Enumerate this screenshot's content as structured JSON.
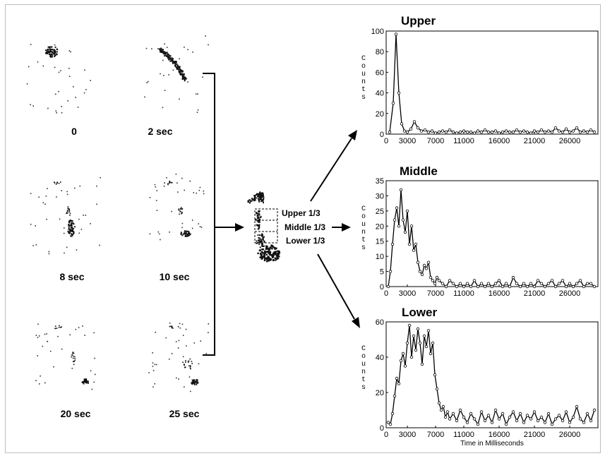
{
  "frames": [
    {
      "label": "0"
    },
    {
      "label": "2 sec"
    },
    {
      "label": "8 sec"
    },
    {
      "label": "10 sec"
    },
    {
      "label": "20 sec"
    },
    {
      "label": "25 sec"
    }
  ],
  "annotations": {
    "upper": "Upper 1/3",
    "middle": "Middle 1/3",
    "lower": "Lower 1/3"
  },
  "counts_label": "Counts",
  "chart_data": [
    {
      "type": "line",
      "title": "Upper",
      "ylabel": "Counts",
      "xlabel": "",
      "ylim": [
        0,
        100
      ],
      "xlim": [
        0,
        30000
      ],
      "xticks": [
        0,
        3000,
        7000,
        11000,
        16000,
        21000,
        26000
      ],
      "yticks": [
        0,
        20,
        40,
        60,
        80,
        100
      ],
      "x": [
        500,
        1000,
        1400,
        1800,
        2200,
        2600,
        3000,
        3500,
        4000,
        4500,
        5000,
        5500,
        6000,
        6500,
        7000,
        7500,
        8000,
        8500,
        9000,
        9500,
        10000,
        10500,
        11000,
        11500,
        12000,
        12500,
        13000,
        13500,
        14000,
        14500,
        15000,
        15500,
        16000,
        16500,
        17000,
        17500,
        18000,
        18500,
        19000,
        19500,
        20000,
        20500,
        21000,
        21500,
        22000,
        22500,
        23000,
        23500,
        24000,
        24500,
        25000,
        25500,
        26000,
        26500,
        27000,
        27500,
        28000,
        28500,
        29000,
        29500
      ],
      "values": [
        2,
        30,
        97,
        40,
        10,
        3,
        2,
        5,
        12,
        6,
        3,
        4,
        2,
        3,
        1,
        2,
        3,
        2,
        4,
        2,
        1,
        2,
        3,
        2,
        2,
        1,
        3,
        2,
        4,
        2,
        2,
        3,
        1,
        2,
        3,
        2,
        2,
        4,
        2,
        3,
        2,
        1,
        3,
        2,
        4,
        2,
        3,
        2,
        6,
        3,
        2,
        5,
        2,
        3,
        6,
        2,
        3,
        2,
        4,
        2
      ],
      "markers": true
    },
    {
      "type": "line",
      "title": "Middle",
      "ylabel": "Counts",
      "xlabel": "",
      "ylim": [
        0,
        35
      ],
      "xlim": [
        0,
        30000
      ],
      "xticks": [
        0,
        3000,
        7000,
        11000,
        16000,
        21000,
        26000
      ],
      "yticks": [
        0,
        5,
        10,
        15,
        20,
        25,
        30,
        35
      ],
      "x": [
        300,
        600,
        900,
        1200,
        1500,
        1800,
        2100,
        2400,
        2700,
        3000,
        3300,
        3600,
        3900,
        4200,
        4500,
        4800,
        5100,
        5400,
        5700,
        6000,
        6300,
        6600,
        6900,
        7200,
        7500,
        8000,
        8500,
        9000,
        9500,
        10000,
        10500,
        11000,
        11500,
        12000,
        12500,
        13000,
        13500,
        14000,
        14500,
        15000,
        15500,
        16000,
        16500,
        17000,
        17500,
        18000,
        18500,
        19000,
        19500,
        20000,
        20500,
        21000,
        21500,
        22000,
        22500,
        23000,
        23500,
        24000,
        24500,
        25000,
        25500,
        26000,
        26500,
        27000,
        27500,
        28000,
        28500,
        29000,
        29500
      ],
      "values": [
        0,
        5,
        14,
        22,
        26,
        20,
        32,
        22,
        18,
        25,
        14,
        20,
        12,
        14,
        8,
        5,
        4,
        7,
        6,
        8,
        3,
        2,
        1,
        3,
        2,
        1,
        0,
        2,
        1,
        0,
        1,
        0,
        1,
        0,
        2,
        0,
        1,
        0,
        1,
        0,
        1,
        2,
        0,
        1,
        0,
        3,
        1,
        0,
        1,
        0,
        1,
        0,
        2,
        1,
        0,
        1,
        2,
        0,
        1,
        2,
        0,
        1,
        0,
        1,
        2,
        0,
        1,
        1,
        0
      ],
      "markers": true
    },
    {
      "type": "line",
      "title": "Lower",
      "ylabel": "Counts",
      "xlabel": "Time in Milliseconds",
      "ylim": [
        0,
        60
      ],
      "xlim": [
        0,
        30000
      ],
      "xticks": [
        0,
        3000,
        7000,
        11000,
        16000,
        21000,
        26000
      ],
      "yticks": [
        0,
        20,
        40,
        60
      ],
      "x": [
        300,
        600,
        900,
        1200,
        1500,
        1800,
        2100,
        2400,
        2700,
        3000,
        3300,
        3600,
        3900,
        4200,
        4500,
        4800,
        5100,
        5400,
        5700,
        6000,
        6300,
        6600,
        6900,
        7200,
        7500,
        7800,
        8100,
        8400,
        8700,
        9000,
        9500,
        10000,
        10500,
        11000,
        11500,
        12000,
        12500,
        13000,
        13500,
        14000,
        14500,
        15000,
        15500,
        16000,
        16500,
        17000,
        17500,
        18000,
        18500,
        19000,
        19500,
        20000,
        20500,
        21000,
        21500,
        22000,
        22500,
        23000,
        23500,
        24000,
        24500,
        25000,
        25500,
        26000,
        26500,
        27000,
        27500,
        28000,
        28500,
        29000,
        29500
      ],
      "values": [
        3,
        2,
        8,
        18,
        28,
        25,
        38,
        42,
        35,
        48,
        58,
        40,
        52,
        44,
        56,
        48,
        36,
        52,
        46,
        55,
        42,
        48,
        30,
        22,
        14,
        10,
        12,
        6,
        9,
        5,
        8,
        4,
        10,
        6,
        3,
        8,
        5,
        2,
        9,
        4,
        7,
        3,
        10,
        5,
        8,
        2,
        6,
        9,
        4,
        8,
        3,
        7,
        5,
        9,
        4,
        6,
        3,
        8,
        2,
        5,
        7,
        4,
        9,
        3,
        6,
        12,
        5,
        3,
        8,
        4,
        10
      ],
      "markers": true
    }
  ]
}
